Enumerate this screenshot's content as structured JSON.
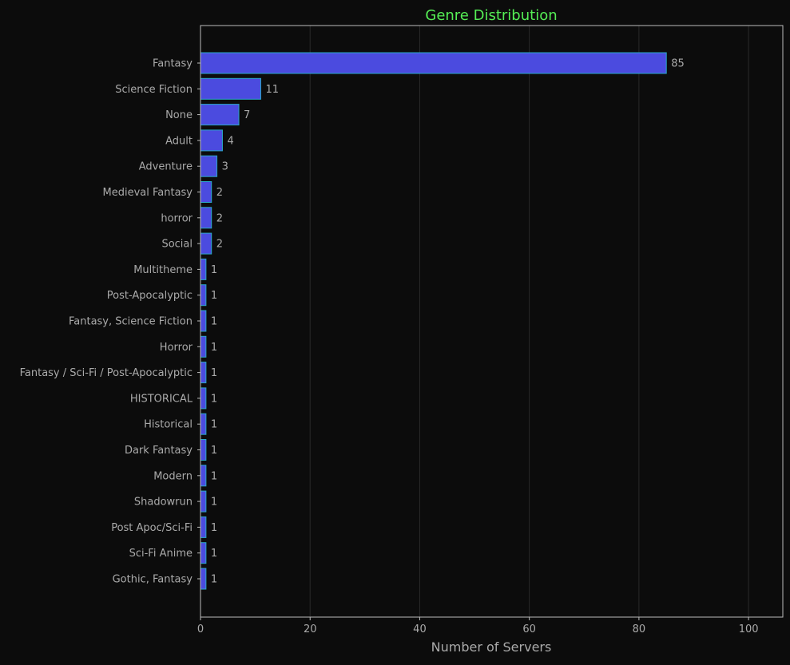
{
  "chart_data": {
    "type": "bar",
    "orientation": "horizontal",
    "title": "Genre Distribution",
    "xlabel": "Number of Servers",
    "ylabel": "",
    "xlim": [
      0,
      106.25
    ],
    "xticks": [
      0,
      20,
      40,
      60,
      80,
      100
    ],
    "grid": "vertical",
    "categories": [
      "Fantasy",
      "Science Fiction",
      "None",
      "Adult",
      "Adventure",
      "Medieval Fantasy",
      "horror",
      "Social",
      "Multitheme",
      "Post-Apocalyptic",
      "Fantasy, Science Fiction",
      "Horror",
      "Fantasy / Sci-Fi / Post-Apocalyptic",
      "HISTORICAL",
      "Historical",
      "Dark Fantasy",
      "Modern",
      "Shadowrun",
      "Post Apoc/Sci-Fi",
      "Sci-Fi Anime",
      "Gothic, Fantasy"
    ],
    "values": [
      85,
      11,
      7,
      4,
      3,
      2,
      2,
      2,
      1,
      1,
      1,
      1,
      1,
      1,
      1,
      1,
      1,
      1,
      1,
      1,
      1
    ],
    "colors": {
      "bar_fill": "#4b4bdf",
      "bar_edge": "#2aa8c8",
      "title": "#55ee55",
      "text": "#aaaaaa",
      "axis": "#bbbbbb",
      "grid": "#2a2a2a",
      "background": "#0c0c0c"
    }
  }
}
